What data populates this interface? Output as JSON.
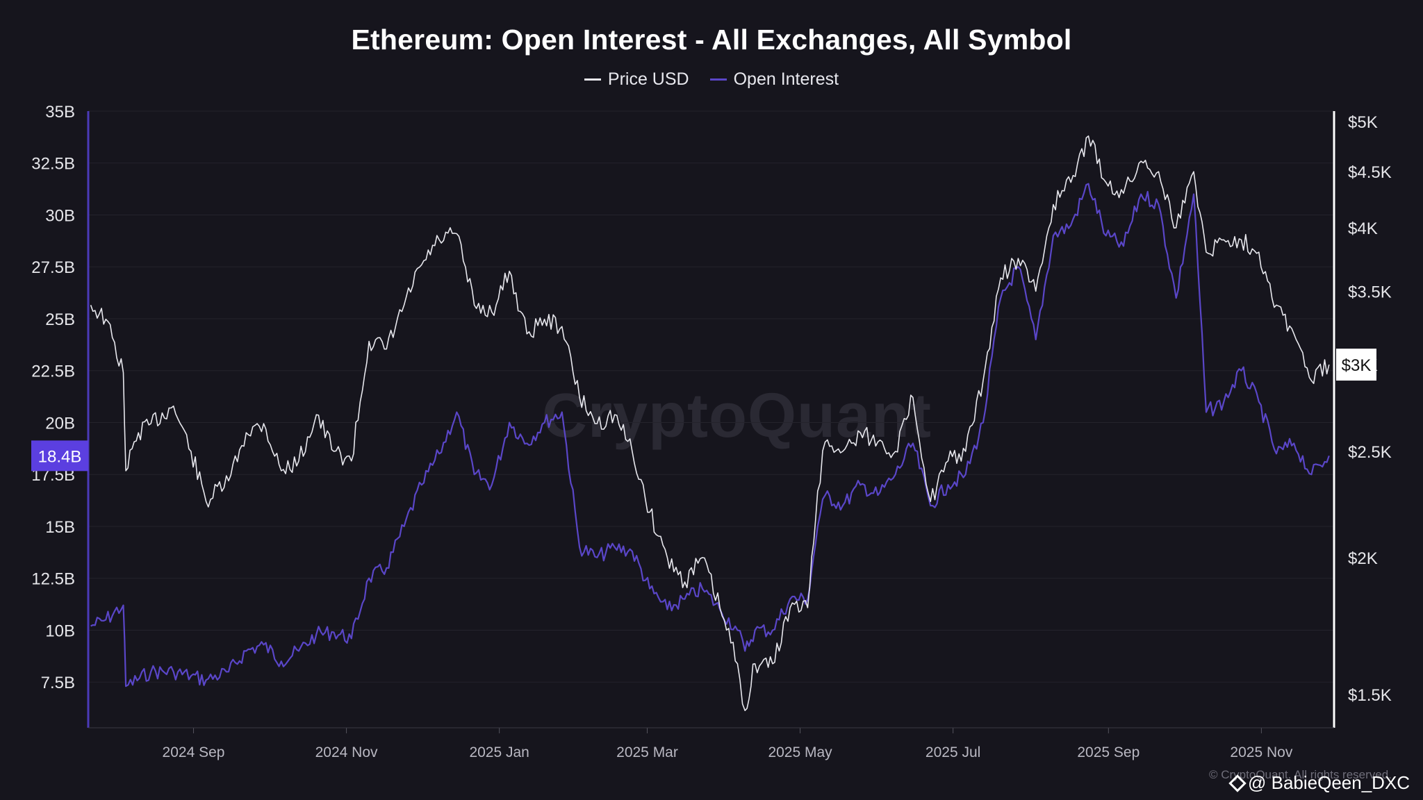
{
  "title": "Ethereum: Open Interest - All Exchanges, All Symbol",
  "legend": [
    {
      "label": "Price USD",
      "color": "#e8e8ee"
    },
    {
      "label": "Open Interest",
      "color": "#5a46c8"
    }
  ],
  "watermark": "CryptoQuant",
  "copyright": "© CryptoQuant. All rights reserved.",
  "handle": "@ BabieQeen_DXC",
  "colors": {
    "background": "#16151d",
    "price": "#e8e8ee",
    "open_interest": "#5a46c8",
    "oi_badge": "#5b3fe0",
    "price_badge": "#ffffff"
  },
  "chart_data": {
    "type": "line",
    "title": "Ethereum: Open Interest - All Exchanges, All Symbol",
    "x_ticks": [
      "2024 Sep",
      "2024 Nov",
      "2025 Jan",
      "2025 Mar",
      "2025 May",
      "2025 Jul",
      "2025 Sep",
      "2025 Nov"
    ],
    "x_range": [
      "2024-07-21",
      "2025-11-30"
    ],
    "y_left": {
      "ticks": [
        "35B",
        "32.5B",
        "30B",
        "27.5B",
        "25B",
        "22.5B",
        "20B",
        "17.5B",
        "15B",
        "12.5B",
        "10B",
        "7.5B"
      ],
      "tick_values": [
        35,
        32.5,
        30,
        27.5,
        25,
        22.5,
        20,
        17.5,
        15,
        12.5,
        10,
        7.5
      ],
      "unit": "B",
      "range": [
        5.3,
        35
      ],
      "current_label": "18.4B",
      "current_value": 18.4
    },
    "y_right": {
      "ticks": [
        "$5K",
        "$4.5K",
        "$4K",
        "$3.5K",
        "$3K",
        "$2.5K",
        "$2K",
        "$1.5K"
      ],
      "tick_values": [
        5000,
        4500,
        4000,
        3500,
        3000,
        2500,
        2000,
        1500
      ],
      "scale": "log",
      "current_label": "$3K",
      "current_value": 3000
    },
    "grid": true,
    "legend_position": "top-center",
    "series": [
      {
        "name": "Price USD",
        "axis": "right",
        "points": [
          [
            "2024-07-22",
            3400
          ],
          [
            "2024-07-28",
            3300
          ],
          [
            "2024-08-04",
            2950
          ],
          [
            "2024-08-05",
            2400
          ],
          [
            "2024-08-10",
            2600
          ],
          [
            "2024-08-15",
            2650
          ],
          [
            "2024-08-24",
            2750
          ],
          [
            "2024-08-31",
            2500
          ],
          [
            "2024-09-06",
            2250
          ],
          [
            "2024-09-15",
            2350
          ],
          [
            "2024-09-22",
            2600
          ],
          [
            "2024-09-29",
            2650
          ],
          [
            "2024-10-06",
            2400
          ],
          [
            "2024-10-13",
            2450
          ],
          [
            "2024-10-20",
            2700
          ],
          [
            "2024-10-27",
            2500
          ],
          [
            "2024-11-03",
            2450
          ],
          [
            "2024-11-10",
            3150
          ],
          [
            "2024-11-17",
            3100
          ],
          [
            "2024-11-24",
            3400
          ],
          [
            "2024-12-01",
            3700
          ],
          [
            "2024-12-08",
            3900
          ],
          [
            "2024-12-15",
            3950
          ],
          [
            "2024-12-22",
            3400
          ],
          [
            "2024-12-29",
            3350
          ],
          [
            "2025-01-05",
            3650
          ],
          [
            "2025-01-12",
            3200
          ],
          [
            "2025-01-19",
            3300
          ],
          [
            "2025-01-26",
            3250
          ],
          [
            "2025-02-02",
            2800
          ],
          [
            "2025-02-09",
            2650
          ],
          [
            "2025-02-16",
            2700
          ],
          [
            "2025-02-23",
            2500
          ],
          [
            "2025-03-02",
            2200
          ],
          [
            "2025-03-09",
            2000
          ],
          [
            "2025-03-16",
            1900
          ],
          [
            "2025-03-23",
            2000
          ],
          [
            "2025-03-30",
            1800
          ],
          [
            "2025-04-06",
            1600
          ],
          [
            "2025-04-09",
            1450
          ],
          [
            "2025-04-13",
            1600
          ],
          [
            "2025-04-20",
            1600
          ],
          [
            "2025-04-27",
            1800
          ],
          [
            "2025-05-04",
            1800
          ],
          [
            "2025-05-08",
            2300
          ],
          [
            "2025-05-11",
            2550
          ],
          [
            "2025-05-18",
            2500
          ],
          [
            "2025-05-25",
            2600
          ],
          [
            "2025-06-01",
            2550
          ],
          [
            "2025-06-08",
            2500
          ],
          [
            "2025-06-15",
            2800
          ],
          [
            "2025-06-22",
            2250
          ],
          [
            "2025-06-29",
            2450
          ],
          [
            "2025-07-06",
            2500
          ],
          [
            "2025-07-13",
            2900
          ],
          [
            "2025-07-20",
            3600
          ],
          [
            "2025-07-27",
            3750
          ],
          [
            "2025-08-03",
            3500
          ],
          [
            "2025-08-10",
            4200
          ],
          [
            "2025-08-17",
            4400
          ],
          [
            "2025-08-24",
            4850
          ],
          [
            "2025-08-31",
            4400
          ],
          [
            "2025-09-07",
            4300
          ],
          [
            "2025-09-14",
            4600
          ],
          [
            "2025-09-21",
            4500
          ],
          [
            "2025-09-28",
            4000
          ],
          [
            "2025-10-05",
            4500
          ],
          [
            "2025-10-10",
            3800
          ],
          [
            "2025-10-17",
            3900
          ],
          [
            "2025-10-24",
            3900
          ],
          [
            "2025-10-31",
            3800
          ],
          [
            "2025-11-07",
            3400
          ],
          [
            "2025-11-14",
            3200
          ],
          [
            "2025-11-21",
            2900
          ],
          [
            "2025-11-28",
            3000
          ]
        ]
      },
      {
        "name": "Open Interest",
        "axis": "left",
        "points": [
          [
            "2024-07-22",
            10.2
          ],
          [
            "2024-07-28",
            10.5
          ],
          [
            "2024-08-04",
            11.2
          ],
          [
            "2024-08-05",
            7.3
          ],
          [
            "2024-08-15",
            8.0
          ],
          [
            "2024-08-24",
            8.0
          ],
          [
            "2024-08-31",
            7.8
          ],
          [
            "2024-09-06",
            7.6
          ],
          [
            "2024-09-15",
            8.0
          ],
          [
            "2024-09-22",
            9.0
          ],
          [
            "2024-09-29",
            9.3
          ],
          [
            "2024-10-06",
            8.5
          ],
          [
            "2024-10-13",
            9.0
          ],
          [
            "2024-10-20",
            9.8
          ],
          [
            "2024-10-27",
            9.9
          ],
          [
            "2024-11-03",
            9.6
          ],
          [
            "2024-11-10",
            12.5
          ],
          [
            "2024-11-17",
            13.0
          ],
          [
            "2024-11-24",
            15.0
          ],
          [
            "2024-12-01",
            17.0
          ],
          [
            "2024-12-08",
            18.5
          ],
          [
            "2024-12-15",
            20.5
          ],
          [
            "2024-12-22",
            17.5
          ],
          [
            "2024-12-29",
            17.0
          ],
          [
            "2025-01-05",
            20.0
          ],
          [
            "2025-01-12",
            19.0
          ],
          [
            "2025-01-19",
            20.0
          ],
          [
            "2025-01-26",
            20.5
          ],
          [
            "2025-02-02",
            14.0
          ],
          [
            "2025-02-09",
            13.5
          ],
          [
            "2025-02-16",
            14.0
          ],
          [
            "2025-02-23",
            13.8
          ],
          [
            "2025-03-02",
            12.0
          ],
          [
            "2025-03-09",
            11.0
          ],
          [
            "2025-03-16",
            11.5
          ],
          [
            "2025-03-23",
            12.0
          ],
          [
            "2025-03-30",
            11.0
          ],
          [
            "2025-04-06",
            10.0
          ],
          [
            "2025-04-09",
            9.0
          ],
          [
            "2025-04-13",
            10.0
          ],
          [
            "2025-04-20",
            10.0
          ],
          [
            "2025-04-27",
            11.5
          ],
          [
            "2025-05-04",
            11.5
          ],
          [
            "2025-05-08",
            15.0
          ],
          [
            "2025-05-11",
            16.5
          ],
          [
            "2025-05-18",
            16.0
          ],
          [
            "2025-05-25",
            17.0
          ],
          [
            "2025-06-01",
            16.5
          ],
          [
            "2025-06-08",
            17.5
          ],
          [
            "2025-06-15",
            19.0
          ],
          [
            "2025-06-22",
            16.0
          ],
          [
            "2025-06-29",
            17.0
          ],
          [
            "2025-07-06",
            17.5
          ],
          [
            "2025-07-13",
            20.0
          ],
          [
            "2025-07-20",
            26.0
          ],
          [
            "2025-07-27",
            27.5
          ],
          [
            "2025-08-03",
            24.0
          ],
          [
            "2025-08-10",
            29.0
          ],
          [
            "2025-08-17",
            29.5
          ],
          [
            "2025-08-24",
            31.5
          ],
          [
            "2025-08-31",
            29.0
          ],
          [
            "2025-09-07",
            28.5
          ],
          [
            "2025-09-14",
            31.0
          ],
          [
            "2025-09-21",
            30.5
          ],
          [
            "2025-09-28",
            26.0
          ],
          [
            "2025-10-05",
            31.0
          ],
          [
            "2025-10-10",
            20.5
          ],
          [
            "2025-10-17",
            21.0
          ],
          [
            "2025-10-24",
            22.5
          ],
          [
            "2025-10-31",
            21.0
          ],
          [
            "2025-11-07",
            18.5
          ],
          [
            "2025-11-14",
            19.0
          ],
          [
            "2025-11-21",
            17.5
          ],
          [
            "2025-11-28",
            18.4
          ]
        ]
      }
    ]
  }
}
